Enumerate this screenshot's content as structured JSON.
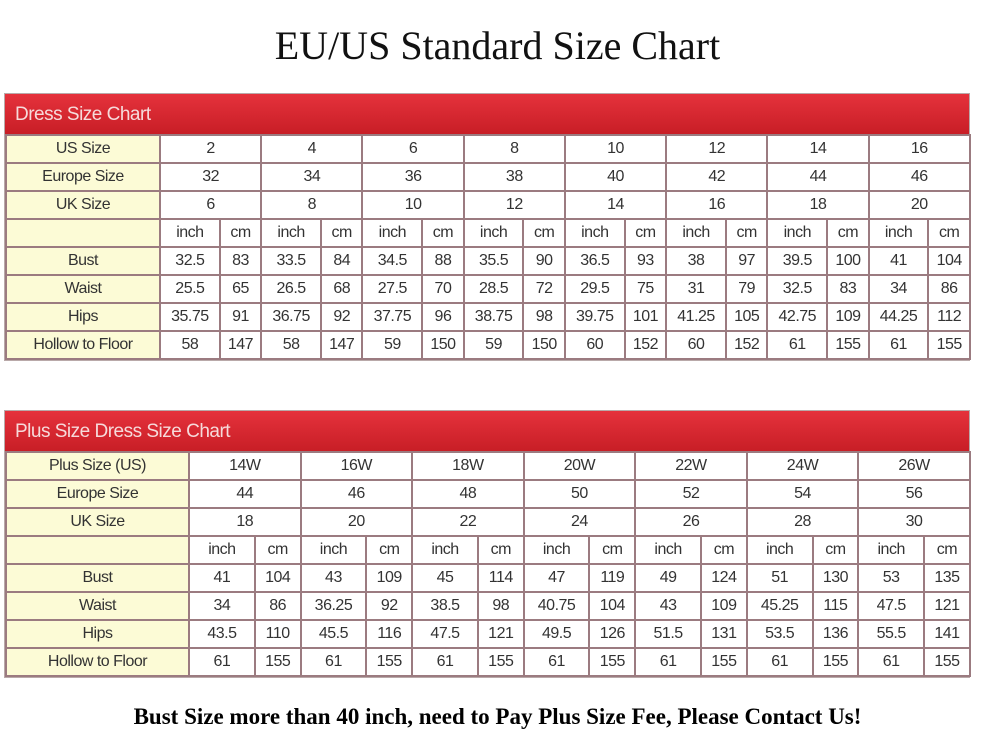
{
  "title": "EU/US Standard Size Chart",
  "footer": "Bust Size more than 40 inch, need to Pay Plus Size Fee, Please Contact Us!",
  "colors": {
    "header_bar": "#d4252e",
    "label_cell": "#fcfbd6",
    "grid": "#9b7b80"
  },
  "dress_chart": {
    "heading": "Dress Size Chart",
    "size_rows": [
      {
        "label": "US Size",
        "values": [
          "2",
          "4",
          "6",
          "8",
          "10",
          "12",
          "14",
          "16"
        ]
      },
      {
        "label": "Europe Size",
        "values": [
          "32",
          "34",
          "36",
          "38",
          "40",
          "42",
          "44",
          "46"
        ]
      },
      {
        "label": "UK Size",
        "values": [
          "6",
          "8",
          "10",
          "12",
          "14",
          "16",
          "18",
          "20"
        ]
      }
    ],
    "units": [
      "inch",
      "cm"
    ],
    "measure_rows": [
      {
        "label": "Bust",
        "values": [
          "32.5",
          "83",
          "33.5",
          "84",
          "34.5",
          "88",
          "35.5",
          "90",
          "36.5",
          "93",
          "38",
          "97",
          "39.5",
          "100",
          "41",
          "104"
        ]
      },
      {
        "label": "Waist",
        "values": [
          "25.5",
          "65",
          "26.5",
          "68",
          "27.5",
          "70",
          "28.5",
          "72",
          "29.5",
          "75",
          "31",
          "79",
          "32.5",
          "83",
          "34",
          "86"
        ]
      },
      {
        "label": "Hips",
        "values": [
          "35.75",
          "91",
          "36.75",
          "92",
          "37.75",
          "96",
          "38.75",
          "98",
          "39.75",
          "101",
          "41.25",
          "105",
          "42.75",
          "109",
          "44.25",
          "112"
        ]
      },
      {
        "label": "Hollow to Floor",
        "values": [
          "58",
          "147",
          "58",
          "147",
          "59",
          "150",
          "59",
          "150",
          "60",
          "152",
          "60",
          "152",
          "61",
          "155",
          "61",
          "155"
        ]
      }
    ]
  },
  "plus_chart": {
    "heading": "Plus Size Dress Size Chart",
    "size_rows": [
      {
        "label": "Plus Size (US)",
        "values": [
          "14W",
          "16W",
          "18W",
          "20W",
          "22W",
          "24W",
          "26W"
        ]
      },
      {
        "label": "Europe Size",
        "values": [
          "44",
          "46",
          "48",
          "50",
          "52",
          "54",
          "56"
        ]
      },
      {
        "label": "UK Size",
        "values": [
          "18",
          "20",
          "22",
          "24",
          "26",
          "28",
          "30"
        ]
      }
    ],
    "units": [
      "inch",
      "cm"
    ],
    "measure_rows": [
      {
        "label": "Bust",
        "values": [
          "41",
          "104",
          "43",
          "109",
          "45",
          "114",
          "47",
          "119",
          "49",
          "124",
          "51",
          "130",
          "53",
          "135"
        ]
      },
      {
        "label": "Waist",
        "values": [
          "34",
          "86",
          "36.25",
          "92",
          "38.5",
          "98",
          "40.75",
          "104",
          "43",
          "109",
          "45.25",
          "115",
          "47.5",
          "121"
        ]
      },
      {
        "label": "Hips",
        "values": [
          "43.5",
          "110",
          "45.5",
          "116",
          "47.5",
          "121",
          "49.5",
          "126",
          "51.5",
          "131",
          "53.5",
          "136",
          "55.5",
          "141"
        ]
      },
      {
        "label": "Hollow to Floor",
        "values": [
          "61",
          "155",
          "61",
          "155",
          "61",
          "155",
          "61",
          "155",
          "61",
          "155",
          "61",
          "155",
          "61",
          "155"
        ]
      }
    ]
  }
}
